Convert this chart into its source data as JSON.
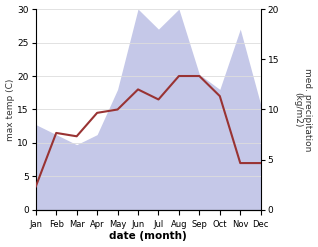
{
  "months": [
    "Jan",
    "Feb",
    "Mar",
    "Apr",
    "May",
    "Jun",
    "Jul",
    "Aug",
    "Sep",
    "Oct",
    "Nov",
    "Dec"
  ],
  "temp_max": [
    3.5,
    11.5,
    11.0,
    14.5,
    15.0,
    18.0,
    16.5,
    20.0,
    20.0,
    17.0,
    7.0,
    7.0
  ],
  "precip": [
    8.5,
    7.5,
    6.5,
    7.5,
    12.0,
    20.0,
    18.0,
    20.0,
    13.5,
    12.0,
    18.0,
    10.5
  ],
  "temp_ylim": [
    0,
    30
  ],
  "precip_ylim": [
    0,
    20
  ],
  "temp_yticks": [
    0,
    5,
    10,
    15,
    20,
    25,
    30
  ],
  "precip_yticks": [
    0,
    5,
    10,
    15,
    20
  ],
  "temp_color": "#993333",
  "precip_fill_color": "#c5c8e8",
  "xlabel": "date (month)",
  "ylabel_left": "max temp (C)",
  "ylabel_right": "med. precipitation\n(kg/m2)",
  "background_color": "#ffffff",
  "temp_linewidth": 1.5,
  "grid_color": "#dddddd"
}
